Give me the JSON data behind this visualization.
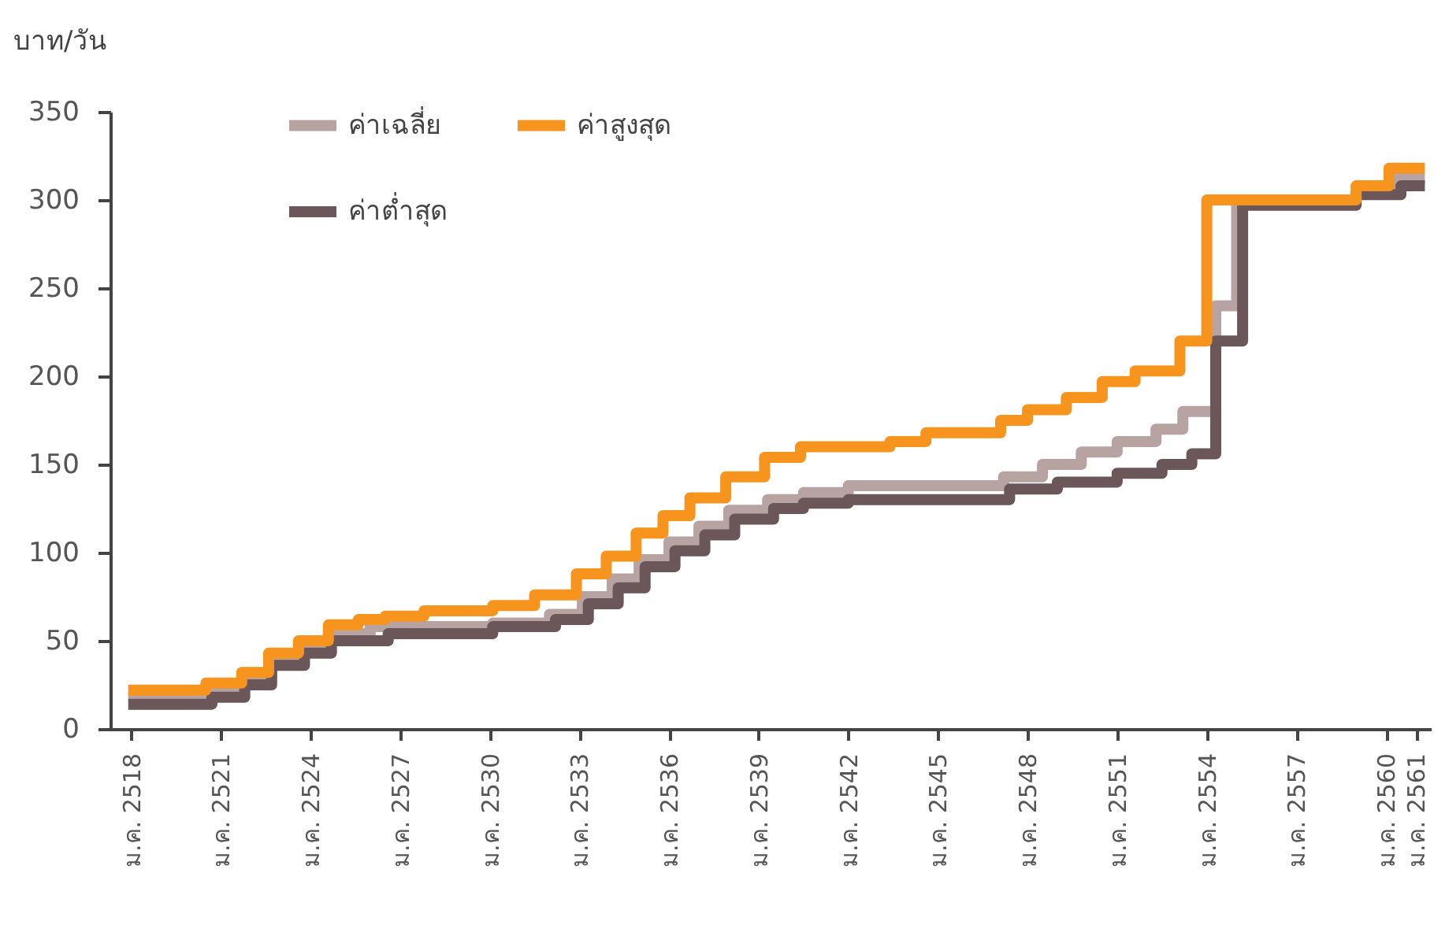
{
  "chart_data": {
    "type": "step",
    "ylabel": "บาท/วัน",
    "xlim": [
      2517.3,
      2561.5
    ],
    "ylim": [
      0,
      350
    ],
    "yticks": [
      0,
      50,
      100,
      150,
      200,
      250,
      300,
      350
    ],
    "xticks": [
      {
        "value": 2518,
        "label": "ม.ค. 2518"
      },
      {
        "value": 2521,
        "label": "ม.ค. 2521"
      },
      {
        "value": 2524,
        "label": "ม.ค. 2524"
      },
      {
        "value": 2527,
        "label": "ม.ค. 2527"
      },
      {
        "value": 2530,
        "label": "ม.ค. 2530"
      },
      {
        "value": 2533,
        "label": "ม.ค. 2533"
      },
      {
        "value": 2536,
        "label": "ม.ค. 2536"
      },
      {
        "value": 2539,
        "label": "ม.ค. 2539"
      },
      {
        "value": 2542,
        "label": "ม.ค. 2542"
      },
      {
        "value": 2545,
        "label": "ม.ค. 2545"
      },
      {
        "value": 2548,
        "label": "ม.ค. 2548"
      },
      {
        "value": 2551,
        "label": "ม.ค. 2551"
      },
      {
        "value": 2554,
        "label": "ม.ค. 2554"
      },
      {
        "value": 2557,
        "label": "ม.ค. 2557"
      },
      {
        "value": 2560,
        "label": "ม.ค. 2560"
      },
      {
        "value": 2561,
        "label": "ม.ค. 2561"
      }
    ],
    "grid": false,
    "legend": "top left",
    "series": [
      {
        "name": "ค่าเฉลี่ย",
        "color": "#b8a3a3",
        "x": [
          2517.9,
          2520.6,
          2521.7,
          2522.7,
          2523.7,
          2524.6,
          2526,
          2530.1,
          2532,
          2533.1,
          2534.1,
          2535,
          2536,
          2537,
          2538,
          2539.3,
          2540.5,
          2542,
          2547.2,
          2548.5,
          2549.8,
          2551,
          2552.3,
          2553.2,
          2554.3,
          2555,
          2559,
          2560.3,
          2561.3
        ],
        "values": [
          18,
          22,
          29,
          39,
          47,
          54,
          58,
          60,
          65,
          75,
          85,
          96,
          106,
          115,
          124,
          130,
          134,
          138,
          143,
          150,
          157,
          163,
          170,
          180,
          240,
          300,
          305,
          312,
          312
        ]
      },
      {
        "name": "ค่าต่ำสุด",
        "color": "#6b565a",
        "x": [
          2517.9,
          2520.7,
          2521.8,
          2522.7,
          2523.8,
          2524.7,
          2526.6,
          2530.1,
          2532.2,
          2533.3,
          2534.3,
          2535.2,
          2536.2,
          2537.2,
          2538.2,
          2539.5,
          2540.5,
          2542,
          2547.4,
          2549,
          2551,
          2552.5,
          2553.5,
          2554.3,
          2555.2,
          2559,
          2560.5,
          2561.3
        ],
        "values": [
          14,
          18,
          25,
          36,
          43,
          50,
          54,
          58,
          62,
          71,
          80,
          92,
          101,
          110,
          119,
          125,
          128,
          130,
          136,
          140,
          145,
          150,
          156,
          220,
          297,
          303,
          308,
          308
        ]
      },
      {
        "name": "ค่าสูงสุด",
        "color": "#f7941d",
        "x": [
          2517.9,
          2520.5,
          2521.7,
          2522.6,
          2523.6,
          2524.6,
          2525.6,
          2526.5,
          2527.8,
          2530.1,
          2531.5,
          2532.9,
          2533.9,
          2534.9,
          2535.8,
          2536.7,
          2537.9,
          2539.2,
          2540.4,
          2543.4,
          2544.6,
          2547.1,
          2548,
          2549.3,
          2550.5,
          2551.6,
          2553.1,
          2554,
          2559,
          2560.1,
          2561.3
        ],
        "values": [
          22,
          26,
          32,
          43,
          50,
          59,
          62,
          64,
          67,
          70,
          76,
          88,
          98,
          111,
          121,
          131,
          143,
          154,
          160,
          163,
          168,
          175,
          181,
          188,
          197,
          203,
          220,
          300,
          308,
          318,
          318
        ]
      }
    ]
  }
}
